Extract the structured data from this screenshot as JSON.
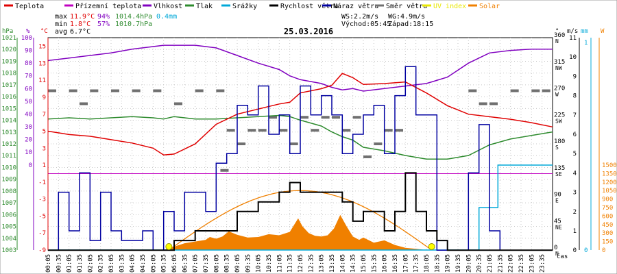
{
  "chart_data": {
    "type": "line",
    "title": "25.03.2016",
    "xlabel": "čas",
    "legend": [
      {
        "label": "Teplota",
        "color": "#e00000"
      },
      {
        "label": "Přízemní teplota",
        "color": "#c000c0"
      },
      {
        "label": "Vlhkost",
        "color": "#8000c0"
      },
      {
        "label": "Tlak",
        "color": "#2e8b2e"
      },
      {
        "label": "Srážky",
        "color": "#00a8d8"
      },
      {
        "label": "Rychlost větru",
        "color": "#000000"
      },
      {
        "label": "Náraz větru",
        "color": "#0000a0"
      },
      {
        "label": "Směr větru",
        "color": "#707070"
      },
      {
        "label": "UV index",
        "color": "#e8e800"
      },
      {
        "label": "Solar",
        "color": "#f08000"
      }
    ],
    "stats": {
      "max_label": "max",
      "max_temp": "11.9°C",
      "max_hum": "94%",
      "max_press": "1014.4hPa",
      "rain": "0.4mm",
      "min_label": "min",
      "min_temp": "1.8°C",
      "min_hum": "57%",
      "min_press": "1010.7hPa",
      "avg_label": "avg",
      "avg_temp": "6.7°C",
      "ws": "WS:2.2m/s",
      "wg": "WG:4.9m/s",
      "sunrise": "Východ:05:45",
      "sunset": "Západ:18:15"
    },
    "axes": {
      "hpa_unit": "hPa",
      "hum_unit": "%",
      "temp_unit": "°C",
      "dir_unit": "°",
      "ms_unit": "m/s",
      "mm_unit": "mm",
      "w_unit": "W",
      "hpa_ticks": [
        "1021",
        "1020",
        "1019",
        "1018",
        "1017",
        "1016",
        "1015",
        "1014",
        "1013",
        "1012",
        "1011",
        "1010",
        "1009",
        "1008",
        "1007",
        "1006",
        "1005",
        "1004",
        "1003"
      ],
      "hum_ticks": [
        "100",
        "90",
        "80",
        "70",
        "60",
        "50",
        "40",
        "30",
        "20",
        "10",
        "0"
      ],
      "temp_ticks": [
        "15",
        "13",
        "11",
        "9",
        "7",
        "5",
        "3",
        "1",
        "-1",
        "-3",
        "-5",
        "-7",
        "-9"
      ],
      "dir_ticks": [
        "360",
        "315",
        "270",
        "225",
        "180",
        "135",
        "90",
        "45",
        "0"
      ],
      "dir_letters": [
        "N",
        "NW",
        "W",
        "SW",
        "S",
        "SE",
        "E",
        "NE",
        "N"
      ],
      "ms_ticks": [
        "11",
        "10",
        "9",
        "8",
        "7",
        "6",
        "5",
        "4",
        "3",
        "2",
        "1",
        "0"
      ],
      "mm_ticks": [
        "1",
        "0"
      ],
      "w_ticks": [
        "1500",
        "1350",
        "1200",
        "1050",
        "900",
        "750",
        "600",
        "450",
        "300",
        "150",
        "0"
      ],
      "time_ticks": [
        "00:05",
        "00:35",
        "01:05",
        "01:35",
        "02:05",
        "02:35",
        "03:05",
        "03:35",
        "04:05",
        "04:35",
        "05:05",
        "05:35",
        "06:05",
        "06:35",
        "07:05",
        "07:35",
        "08:05",
        "08:35",
        "09:05",
        "09:35",
        "10:05",
        "10:35",
        "11:05",
        "11:35",
        "12:05",
        "12:35",
        "13:05",
        "13:35",
        "14:05",
        "14:35",
        "15:05",
        "15:35",
        "16:05",
        "16:35",
        "17:05",
        "17:35",
        "18:05",
        "18:35",
        "19:05",
        "19:35",
        "20:05",
        "20:35",
        "21:05",
        "21:35",
        "22:05",
        "22:35",
        "23:05",
        "23:35"
      ]
    },
    "x_hours": [
      0,
      1,
      2,
      3,
      4,
      5,
      5.5,
      6,
      7,
      8,
      9,
      10,
      11,
      11.5,
      12,
      13,
      13.5,
      14,
      14.5,
      15,
      16,
      17,
      18,
      19,
      20,
      21,
      22,
      23,
      24
    ],
    "temperature": [
      5.0,
      4.6,
      4.4,
      4.0,
      3.6,
      3.0,
      2.2,
      2.3,
      3.5,
      5.8,
      7.0,
      7.6,
      8.2,
      8.4,
      9.5,
      10.0,
      10.4,
      11.8,
      11.3,
      10.5,
      10.6,
      10.8,
      9.5,
      8.0,
      7.0,
      6.7,
      6.4,
      6.0,
      5.5
    ],
    "humidity": [
      82,
      84,
      86,
      88,
      91,
      93,
      94,
      94,
      94,
      92,
      86,
      80,
      75,
      70,
      67,
      64,
      61,
      59,
      60,
      58,
      60,
      62,
      64,
      69,
      80,
      88,
      90,
      91,
      91
    ],
    "pressure": [
      1014.1,
      1014.2,
      1014.1,
      1014.2,
      1014.3,
      1014.2,
      1014.1,
      1014.3,
      1014.1,
      1014.1,
      1014.2,
      1014.3,
      1014.4,
      1014.3,
      1014.0,
      1013.5,
      1013.0,
      1012.6,
      1012.3,
      1011.7,
      1011.4,
      1011.0,
      1010.7,
      1010.7,
      1011.0,
      1011.9,
      1012.4,
      1012.7,
      1013.0
    ],
    "wind_speed_hours": [
      0,
      5.5,
      6,
      7,
      8,
      9,
      10,
      11,
      11.5,
      12,
      13,
      14,
      14.5,
      15,
      16,
      16.5,
      17,
      17.5,
      18,
      18.5,
      19,
      21,
      21.5,
      22,
      24
    ],
    "wind_speed": [
      0,
      0,
      0.5,
      1,
      1,
      2,
      2.5,
      3,
      3.5,
      3,
      3,
      2.5,
      1.5,
      2,
      1,
      2,
      4,
      2,
      1,
      0.5,
      0,
      0,
      0,
      0,
      0
    ],
    "wind_gust_hours": [
      0,
      0.5,
      1,
      1.5,
      2,
      2.5,
      3,
      3.5,
      4,
      4.5,
      5,
      5.5,
      6,
      6.5,
      7,
      7.5,
      8,
      8.5,
      9,
      9.5,
      10,
      10.5,
      11,
      11.5,
      12,
      12.5,
      13,
      13.5,
      14,
      14.5,
      15,
      15.5,
      16,
      16.5,
      17,
      17.5,
      18,
      18.5,
      19,
      19.5,
      20,
      20.5,
      21,
      21.5,
      22,
      22.5,
      23,
      23.5,
      24
    ],
    "wind_gust": [
      0,
      3,
      1,
      4,
      0.5,
      3,
      1,
      0.5,
      0.5,
      1,
      0,
      2,
      1,
      3,
      3,
      2,
      4.5,
      5,
      7.5,
      7,
      8.5,
      6,
      7,
      5,
      8.5,
      7,
      8,
      7,
      5,
      6,
      7,
      7.5,
      5,
      8,
      9.5,
      7,
      7,
      0,
      0,
      0,
      4,
      6.5,
      1,
      0,
      0,
      0,
      0,
      0,
      0
    ],
    "direction_samples": [
      {
        "t": 0,
        "deg": 270
      },
      {
        "t": 1,
        "deg": 270
      },
      {
        "t": 1.5,
        "deg": 248
      },
      {
        "t": 2,
        "deg": 270
      },
      {
        "t": 3,
        "deg": 270
      },
      {
        "t": 4,
        "deg": 270
      },
      {
        "t": 5,
        "deg": 270
      },
      {
        "t": 6,
        "deg": 248
      },
      {
        "t": 7,
        "deg": 270
      },
      {
        "t": 8,
        "deg": 270
      },
      {
        "t": 8.2,
        "deg": 135
      },
      {
        "t": 8.5,
        "deg": 203
      },
      {
        "t": 9,
        "deg": 180
      },
      {
        "t": 9.5,
        "deg": 203
      },
      {
        "t": 10,
        "deg": 203
      },
      {
        "t": 10.5,
        "deg": 225
      },
      {
        "t": 11,
        "deg": 203
      },
      {
        "t": 11.5,
        "deg": 180
      },
      {
        "t": 12,
        "deg": 225
      },
      {
        "t": 12.5,
        "deg": 203
      },
      {
        "t": 13,
        "deg": 225
      },
      {
        "t": 13.5,
        "deg": 225
      },
      {
        "t": 14,
        "deg": 203
      },
      {
        "t": 14.5,
        "deg": 225
      },
      {
        "t": 15,
        "deg": 158
      },
      {
        "t": 15.5,
        "deg": 180
      },
      {
        "t": 16,
        "deg": 203
      },
      {
        "t": 16.5,
        "deg": 203
      },
      {
        "t": 20,
        "deg": 270
      },
      {
        "t": 20.5,
        "deg": 248
      },
      {
        "t": 21,
        "deg": 248
      },
      {
        "t": 22,
        "deg": 270
      },
      {
        "t": 23,
        "deg": 270
      },
      {
        "t": 23.5,
        "deg": 270
      }
    ],
    "rain_cumulative": [
      {
        "t": 0,
        "mm": 0
      },
      {
        "t": 20.4,
        "mm": 0
      },
      {
        "t": 20.5,
        "mm": 0.2
      },
      {
        "t": 21.3,
        "mm": 0.2
      },
      {
        "t": 21.4,
        "mm": 0.4
      },
      {
        "t": 24,
        "mm": 0.4
      }
    ],
    "solar_hours": [
      5.5,
      6,
      6.5,
      7,
      7.5,
      7.7,
      8,
      8.3,
      8.6,
      9,
      9.5,
      10,
      10.5,
      11,
      11.5,
      11.9,
      12.1,
      12.4,
      12.7,
      13,
      13.3,
      13.6,
      13.9,
      14.2,
      14.5,
      14.8,
      15,
      15.5,
      16,
      16.5,
      17,
      17.5,
      18
    ],
    "solar": [
      0,
      60,
      120,
      150,
      180,
      230,
      200,
      240,
      330,
      270,
      220,
      230,
      280,
      260,
      320,
      560,
      420,
      300,
      250,
      240,
      260,
      380,
      620,
      420,
      240,
      180,
      220,
      130,
      170,
      90,
      40,
      20,
      0
    ],
    "clear_sky_peak": 1050,
    "uv_markers": [
      {
        "t": 5.75,
        "v": 0
      },
      {
        "t": 18.25,
        "v": 0
      }
    ]
  }
}
